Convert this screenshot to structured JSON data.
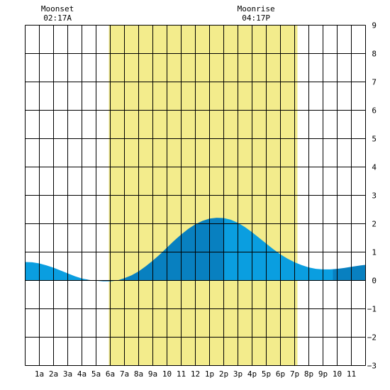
{
  "chart_data": {
    "type": "area",
    "title": "",
    "xlabel": "",
    "ylabel": "",
    "xlim": [
      0,
      24
    ],
    "ylim": [
      -3,
      9
    ],
    "grid": true,
    "x_ticks": [
      {
        "x": 1,
        "label": "1a"
      },
      {
        "x": 2,
        "label": "2a"
      },
      {
        "x": 3,
        "label": "3a"
      },
      {
        "x": 4,
        "label": "4a"
      },
      {
        "x": 5,
        "label": "5a"
      },
      {
        "x": 6,
        "label": "6a"
      },
      {
        "x": 7,
        "label": "7a"
      },
      {
        "x": 8,
        "label": "8a"
      },
      {
        "x": 9,
        "label": "9a"
      },
      {
        "x": 10,
        "label": "10"
      },
      {
        "x": 11,
        "label": "11"
      },
      {
        "x": 12,
        "label": "12"
      },
      {
        "x": 13,
        "label": "1p"
      },
      {
        "x": 14,
        "label": "2p"
      },
      {
        "x": 15,
        "label": "3p"
      },
      {
        "x": 16,
        "label": "4p"
      },
      {
        "x": 17,
        "label": "5p"
      },
      {
        "x": 18,
        "label": "6p"
      },
      {
        "x": 19,
        "label": "7p"
      },
      {
        "x": 20,
        "label": "8p"
      },
      {
        "x": 21,
        "label": "9p"
      },
      {
        "x": 22,
        "label": "10"
      },
      {
        "x": 23,
        "label": "11"
      }
    ],
    "y_ticks": [
      9,
      8,
      7,
      6,
      5,
      4,
      3,
      2,
      1,
      0,
      -1,
      -2,
      -3
    ],
    "daylight": {
      "start": 5.9,
      "end": 19.2,
      "color": "#f3ec8c"
    },
    "series": [
      {
        "x": [
          0,
          0.5,
          1,
          1.5,
          2,
          2.5,
          3,
          3.5,
          4,
          4.5,
          5,
          5.5,
          6,
          6.5,
          7,
          7.5,
          8,
          8.5,
          9,
          9.5,
          10,
          10.5,
          11,
          11.5,
          12,
          12.5,
          13,
          13.5,
          14,
          14.5,
          15,
          15.5,
          16,
          16.5,
          17,
          17.5,
          18,
          18.5,
          19,
          19.5,
          20,
          20.5,
          21,
          21.5,
          22,
          22.5,
          23,
          23.5,
          24
        ],
        "y": [
          0.65,
          0.64,
          0.6,
          0.53,
          0.45,
          0.35,
          0.25,
          0.15,
          0.07,
          0.02,
          -0.01,
          -0.03,
          -0.03,
          0.0,
          0.08,
          0.18,
          0.32,
          0.5,
          0.7,
          0.92,
          1.16,
          1.4,
          1.62,
          1.82,
          1.98,
          2.1,
          2.18,
          2.21,
          2.2,
          2.14,
          2.03,
          1.88,
          1.7,
          1.5,
          1.3,
          1.1,
          0.92,
          0.77,
          0.64,
          0.54,
          0.46,
          0.41,
          0.39,
          0.39,
          0.41,
          0.44,
          0.48,
          0.52,
          0.55
        ]
      }
    ],
    "tide_segments": [
      {
        "from": 0,
        "to": 4.3,
        "color": "#0a9ee0"
      },
      {
        "from": 4.3,
        "to": 7.3,
        "color": "#0880c0"
      },
      {
        "from": 7.3,
        "to": 14.0,
        "color": "#0880c0"
      },
      {
        "from": 14.0,
        "to": 21.7,
        "color": "#0a9ee0"
      },
      {
        "from": 21.7,
        "to": 24,
        "color": "#0880c0"
      }
    ],
    "events": [
      {
        "label": "Moonset",
        "time": "02:17A",
        "x": 2.28
      },
      {
        "label": "Moonrise",
        "time": "04:17P",
        "x": 16.28
      }
    ]
  }
}
